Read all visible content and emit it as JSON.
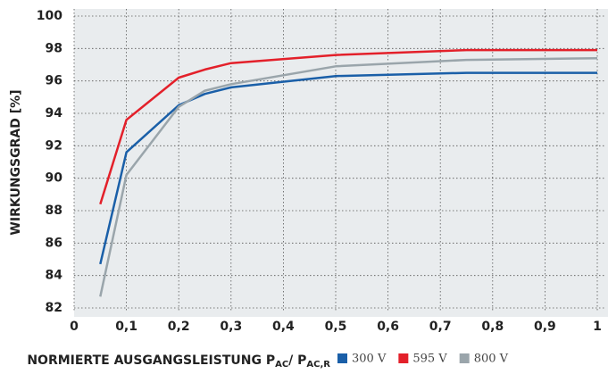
{
  "chart_data": {
    "type": "line",
    "y_label": "WIRKUNGSGRAD [%]",
    "x_label": [
      "NORMIERTE AUSGANGSLEISTUNG P",
      "AC",
      "/ P",
      "AC,R"
    ],
    "x": [
      0.05,
      0.1,
      0.2,
      0.25,
      0.3,
      0.5,
      0.75,
      1
    ],
    "series": [
      {
        "name": "300 V",
        "color": "#1a5fa8",
        "values": [
          84.7,
          91.6,
          94.5,
          95.2,
          95.6,
          96.3,
          96.5,
          96.5
        ]
      },
      {
        "name": "595 V",
        "color": "#e3202a",
        "values": [
          88.4,
          93.6,
          96.2,
          96.7,
          97.1,
          97.6,
          97.9,
          97.9
        ]
      },
      {
        "name": "800 V",
        "color": "#9aa5ab",
        "values": [
          82.7,
          90.2,
          94.4,
          95.4,
          95.8,
          96.9,
          97.3,
          97.4
        ]
      }
    ],
    "xlim": [
      0,
      1
    ],
    "xticks": [
      0,
      {
        "value": 0.1,
        "label": "0,1"
      },
      {
        "value": 0.2,
        "label": "0,2"
      },
      {
        "value": 0.3,
        "label": "0,3"
      },
      {
        "value": 0.4,
        "label": "0,4"
      },
      {
        "value": 0.5,
        "label": "0,5"
      },
      {
        "value": 0.6,
        "label": "0,6"
      },
      {
        "value": 0.7,
        "label": "0,7"
      },
      {
        "value": 0.8,
        "label": "0,8"
      },
      {
        "value": 0.9,
        "label": "0,9"
      },
      1
    ],
    "ylim": [
      82,
      100
    ],
    "yticks": [
      82,
      84,
      86,
      88,
      90,
      92,
      94,
      96,
      98,
      100
    ],
    "grid": true
  }
}
